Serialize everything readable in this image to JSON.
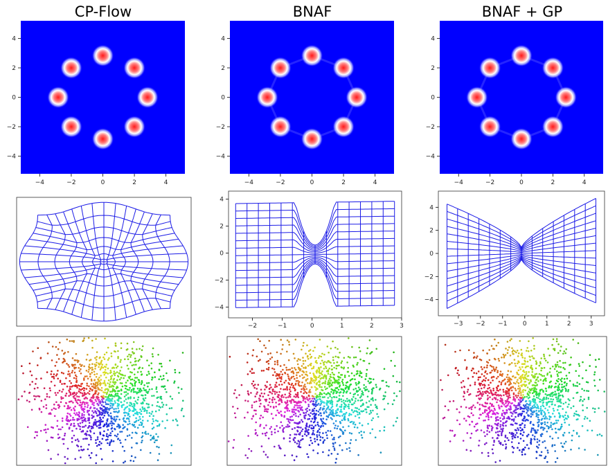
{
  "columns": [
    {
      "title": "CP-Flow"
    },
    {
      "title": "BNAF"
    },
    {
      "title": "BNAF + GP"
    }
  ],
  "colors": {
    "background": "#0000ff",
    "grid": "#1a1ae6",
    "mode_center": "#ff2020",
    "mode_halo": "#ffffff"
  },
  "chart_data": [
    {
      "type": "heatmap",
      "panel": "CP-Flow density",
      "xlim": [
        -5.2,
        5.2
      ],
      "ylim": [
        -5.2,
        5.2
      ],
      "xticks": [
        -4,
        -2,
        0,
        2,
        4
      ],
      "yticks": [
        4,
        2,
        0,
        -2,
        -4
      ],
      "modes": [
        [
          0,
          2.83
        ],
        [
          2,
          2
        ],
        [
          2.83,
          0
        ],
        [
          2,
          -2
        ],
        [
          0,
          -2.83
        ],
        [
          -2,
          -2
        ],
        [
          -2.83,
          0
        ],
        [
          -2,
          2
        ]
      ]
    },
    {
      "type": "heatmap",
      "panel": "BNAF density",
      "xlim": [
        -5.2,
        5.2
      ],
      "ylim": [
        -5.2,
        5.2
      ],
      "xticks": [
        -4,
        -2,
        0,
        2,
        4
      ],
      "yticks": [
        4,
        2,
        0,
        -2,
        -4
      ],
      "modes": [
        [
          0,
          2.83
        ],
        [
          2,
          2
        ],
        [
          2.83,
          0
        ],
        [
          2,
          -2
        ],
        [
          0,
          -2.83
        ],
        [
          -2,
          -2
        ],
        [
          -2.83,
          0
        ],
        [
          -2,
          2
        ]
      ]
    },
    {
      "type": "heatmap",
      "panel": "BNAF + GP density",
      "xlim": [
        -5.2,
        5.2
      ],
      "ylim": [
        -5.2,
        5.2
      ],
      "xticks": [
        -4,
        -2,
        0,
        2,
        4
      ],
      "yticks": [
        4,
        2,
        0,
        -2,
        -4
      ],
      "modes": [
        [
          0,
          2.83
        ],
        [
          2,
          2
        ],
        [
          2.83,
          0
        ],
        [
          2,
          -2
        ],
        [
          0,
          -2.83
        ],
        [
          -2,
          -2
        ],
        [
          -2.83,
          0
        ],
        [
          -2,
          2
        ]
      ]
    },
    {
      "type": "line",
      "panel": "CP-Flow grid"
    },
    {
      "type": "line",
      "panel": "BNAF grid",
      "xlim": [
        -2.8,
        3.0
      ],
      "ylim": [
        -4.8,
        4.6
      ],
      "xticks": [
        -2,
        -1,
        0,
        1,
        2,
        3
      ],
      "yticks": [
        4,
        2,
        0,
        -2,
        -4
      ]
    },
    {
      "type": "line",
      "panel": "BNAF + GP grid",
      "xlim": [
        -3.9,
        3.6
      ],
      "ylim": [
        -5.4,
        5.4
      ],
      "xticks": [
        -3,
        -2,
        -1,
        0,
        1,
        2,
        3
      ],
      "yticks": [
        4,
        2,
        0,
        -2,
        -4
      ]
    },
    {
      "type": "scatter",
      "panel": "CP-Flow samples"
    },
    {
      "type": "scatter",
      "panel": "BNAF samples"
    },
    {
      "type": "scatter",
      "panel": "BNAF + GP samples"
    }
  ]
}
